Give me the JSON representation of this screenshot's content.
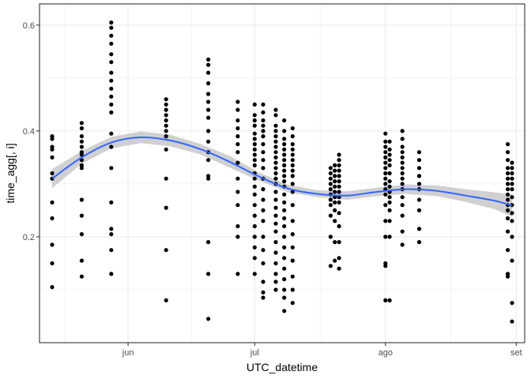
{
  "chart_data": {
    "type": "scatter",
    "title": "",
    "xlabel": "UTC_datetime",
    "ylabel": "time_agg[, i]",
    "x_range": [
      "2023-05-11",
      "2023-09-03"
    ],
    "ylim": [
      0.0,
      0.64
    ],
    "grid": true,
    "legend": "none",
    "x_ticks": [
      {
        "date": "2023-06-01",
        "label": "jun"
      },
      {
        "date": "2023-07-01",
        "label": "jul"
      },
      {
        "date": "2023-08-01",
        "label": "ago"
      },
      {
        "date": "2023-09-01",
        "label": "set"
      }
    ],
    "y_ticks": [
      {
        "value": 0.2,
        "label": "0.2"
      },
      {
        "value": 0.4,
        "label": "0.4"
      },
      {
        "value": 0.6,
        "label": "0.6"
      }
    ],
    "colors": {
      "points": "#000000",
      "smooth_line": "#3366ff",
      "ribbon": "#c8c8c8",
      "grid": "#ebebeb",
      "panel_border": "#333333"
    },
    "series": [
      {
        "kind": "points",
        "groups": [
          {
            "x": "2023-05-14",
            "y": [
              0.39,
              0.385,
              0.37,
              0.365,
              0.35,
              0.32,
              0.31,
              0.265,
              0.235,
              0.185,
              0.15,
              0.105
            ]
          },
          {
            "x": "2023-05-21",
            "y": [
              0.415,
              0.405,
              0.39,
              0.38,
              0.37,
              0.36,
              0.355,
              0.345,
              0.335,
              0.33,
              0.27,
              0.24,
              0.205,
              0.155,
              0.125
            ]
          },
          {
            "x": "2023-05-28",
            "y": [
              0.605,
              0.595,
              0.58,
              0.565,
              0.545,
              0.53,
              0.51,
              0.495,
              0.48,
              0.465,
              0.45,
              0.435,
              0.395,
              0.37,
              0.33,
              0.265,
              0.215,
              0.205,
              0.175,
              0.13
            ]
          },
          {
            "x": "2023-06-10",
            "y": [
              0.46,
              0.45,
              0.44,
              0.43,
              0.42,
              0.41,
              0.4,
              0.39,
              0.365,
              0.31,
              0.255,
              0.175,
              0.08
            ]
          },
          {
            "x": "2023-06-20",
            "y": [
              0.535,
              0.525,
              0.51,
              0.49,
              0.47,
              0.455,
              0.44,
              0.425,
              0.4,
              0.38,
              0.36,
              0.345,
              0.315,
              0.31,
              0.19,
              0.13,
              0.045
            ]
          },
          {
            "x": "2023-06-27",
            "y": [
              0.455,
              0.44,
              0.42,
              0.405,
              0.39,
              0.375,
              0.36,
              0.34,
              0.31,
              0.285,
              0.26,
              0.22,
              0.2,
              0.13
            ]
          },
          {
            "x": "2023-07-01",
            "y": [
              0.45,
              0.43,
              0.42,
              0.41,
              0.395,
              0.385,
              0.375,
              0.365,
              0.355,
              0.345,
              0.335,
              0.32,
              0.31,
              0.295,
              0.28,
              0.26,
              0.24,
              0.22,
              0.2,
              0.18,
              0.16,
              0.13
            ]
          },
          {
            "x": "2023-07-03",
            "y": [
              0.45,
              0.435,
              0.42,
              0.41,
              0.4,
              0.39,
              0.375,
              0.36,
              0.345,
              0.33,
              0.31,
              0.29,
              0.27,
              0.25,
              0.23,
              0.2,
              0.175,
              0.15,
              0.115,
              0.095,
              0.085
            ]
          },
          {
            "x": "2023-07-06",
            "y": [
              0.44,
              0.43,
              0.41,
              0.4,
              0.39,
              0.38,
              0.37,
              0.36,
              0.35,
              0.34,
              0.33,
              0.32,
              0.31,
              0.3,
              0.285,
              0.27,
              0.255,
              0.24,
              0.225,
              0.21,
              0.19,
              0.17,
              0.15,
              0.13,
              0.115,
              0.1
            ]
          },
          {
            "x": "2023-07-08",
            "y": [
              0.42,
              0.4,
              0.385,
              0.375,
              0.365,
              0.355,
              0.345,
              0.335,
              0.325,
              0.315,
              0.305,
              0.295,
              0.28,
              0.265,
              0.25,
              0.235,
              0.22,
              0.2,
              0.18,
              0.16,
              0.14,
              0.12,
              0.1,
              0.085,
              0.06
            ]
          },
          {
            "x": "2023-07-10",
            "y": [
              0.405,
              0.39,
              0.375,
              0.365,
              0.355,
              0.345,
              0.335,
              0.325,
              0.315,
              0.3,
              0.285,
              0.26,
              0.23,
              0.205,
              0.18,
              0.155,
              0.125,
              0.1,
              0.075
            ]
          },
          {
            "x": "2023-07-19",
            "y": [
              0.33,
              0.32,
              0.31,
              0.3,
              0.29,
              0.28,
              0.27,
              0.26,
              0.24,
              0.2,
              0.145
            ]
          },
          {
            "x": "2023-07-20",
            "y": [
              0.335,
              0.325,
              0.315,
              0.305,
              0.295,
              0.285,
              0.275,
              0.265,
              0.25,
              0.23,
              0.19,
              0.155
            ]
          },
          {
            "x": "2023-07-21",
            "y": [
              0.355,
              0.345,
              0.335,
              0.325,
              0.315,
              0.305,
              0.295,
              0.285,
              0.275,
              0.265,
              0.245,
              0.22,
              0.19,
              0.16,
              0.14
            ]
          },
          {
            "x": "2023-08-01",
            "y": [
              0.395,
              0.38,
              0.37,
              0.36,
              0.35,
              0.34,
              0.33,
              0.32,
              0.31,
              0.3,
              0.29,
              0.28,
              0.26,
              0.23,
              0.2,
              0.15,
              0.145,
              0.08
            ]
          },
          {
            "x": "2023-08-02",
            "y": [
              0.38,
              0.365,
              0.355,
              0.345,
              0.335,
              0.32,
              0.305,
              0.295,
              0.285,
              0.275,
              0.265,
              0.25,
              0.23,
              0.2,
              0.08
            ]
          },
          {
            "x": "2023-08-05",
            "y": [
              0.4,
              0.385,
              0.37,
              0.36,
              0.35,
              0.34,
              0.33,
              0.32,
              0.31,
              0.3,
              0.29,
              0.275,
              0.26,
              0.24,
              0.21,
              0.185
            ]
          },
          {
            "x": "2023-08-09",
            "y": [
              0.36,
              0.345,
              0.33,
              0.315,
              0.3,
              0.29,
              0.27,
              0.25,
              0.215,
              0.19
            ]
          },
          {
            "x": "2023-08-30",
            "y": [
              0.375,
              0.36,
              0.345,
              0.33,
              0.32,
              0.31,
              0.3,
              0.29,
              0.28,
              0.27,
              0.26,
              0.25,
              0.235,
              0.21,
              0.175,
              0.13,
              0.125
            ]
          },
          {
            "x": "2023-08-31",
            "y": [
              0.34,
              0.33,
              0.32,
              0.31,
              0.3,
              0.29,
              0.275,
              0.26,
              0.245,
              0.23,
              0.2,
              0.155,
              0.075,
              0.04
            ]
          }
        ]
      },
      {
        "kind": "smooth",
        "x": [
          "2023-05-14",
          "2023-05-21",
          "2023-05-28",
          "2023-06-04",
          "2023-06-11",
          "2023-06-18",
          "2023-06-25",
          "2023-07-02",
          "2023-07-09",
          "2023-07-16",
          "2023-07-23",
          "2023-07-30",
          "2023-08-06",
          "2023-08-13",
          "2023-08-20",
          "2023-08-27",
          "2023-08-31"
        ],
        "y": [
          0.31,
          0.35,
          0.378,
          0.388,
          0.382,
          0.366,
          0.342,
          0.314,
          0.291,
          0.281,
          0.278,
          0.285,
          0.29,
          0.287,
          0.278,
          0.268,
          0.259
        ],
        "lower": [
          0.292,
          0.338,
          0.367,
          0.377,
          0.371,
          0.356,
          0.331,
          0.306,
          0.284,
          0.275,
          0.27,
          0.277,
          0.281,
          0.277,
          0.266,
          0.252,
          0.238
        ],
        "upper": [
          0.328,
          0.362,
          0.389,
          0.399,
          0.393,
          0.376,
          0.353,
          0.322,
          0.298,
          0.288,
          0.286,
          0.293,
          0.299,
          0.297,
          0.29,
          0.284,
          0.28
        ]
      }
    ]
  }
}
